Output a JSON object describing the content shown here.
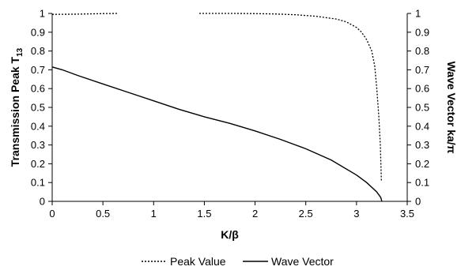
{
  "chart_data": {
    "type": "line",
    "xlabel": "K/β",
    "ylabel_left": "Transmission Peak T₁₃",
    "ylabel_right": "Wave Vector ka/π",
    "xlim": [
      0,
      3.5
    ],
    "ylim_left": [
      0,
      1
    ],
    "ylim_right": [
      0,
      1
    ],
    "x_ticks": [
      "0",
      "0.5",
      "1",
      "1.5",
      "2",
      "2.5",
      "3",
      "3.5"
    ],
    "y_ticks_left": [
      "0",
      "0.1",
      "0.2",
      "0.3",
      "0.4",
      "0.5",
      "0.6",
      "0.7",
      "0.8",
      "0.9",
      "1"
    ],
    "y_ticks_right": [
      "0",
      "0.1",
      "0.2",
      "0.3",
      "0.4",
      "0.5",
      "0.6",
      "0.7",
      "0.8",
      "0.9",
      "1"
    ],
    "grid": false,
    "legend_position": "bottom",
    "series": [
      {
        "name": "Peak Value",
        "style": "dotted",
        "axis": "left",
        "segments": [
          [
            [
              0,
              0.995
            ],
            [
              0.2,
              0.996
            ],
            [
              0.4,
              0.998
            ],
            [
              0.5,
              0.999
            ],
            [
              0.65,
              1.0
            ]
          ],
          [
            [
              1.45,
              1.0
            ],
            [
              1.6,
              1.0
            ],
            [
              1.8,
              1.0
            ],
            [
              2.0,
              0.999
            ],
            [
              2.2,
              0.997
            ],
            [
              2.4,
              0.993
            ],
            [
              2.6,
              0.985
            ],
            [
              2.8,
              0.97
            ],
            [
              2.9,
              0.955
            ],
            [
              3.0,
              0.925
            ],
            [
              3.05,
              0.9
            ],
            [
              3.1,
              0.86
            ],
            [
              3.15,
              0.8
            ],
            [
              3.18,
              0.72
            ],
            [
              3.2,
              0.6
            ],
            [
              3.22,
              0.45
            ],
            [
              3.235,
              0.3
            ],
            [
              3.245,
              0.11
            ]
          ]
        ]
      },
      {
        "name": "Wave Vector",
        "style": "solid",
        "axis": "right",
        "segments": [
          [
            [
              0,
              0.715
            ],
            [
              0.1,
              0.7
            ],
            [
              0.25,
              0.67
            ],
            [
              0.5,
              0.625
            ],
            [
              0.75,
              0.58
            ],
            [
              1.0,
              0.535
            ],
            [
              1.25,
              0.49
            ],
            [
              1.5,
              0.45
            ],
            [
              1.75,
              0.415
            ],
            [
              2.0,
              0.375
            ],
            [
              2.25,
              0.33
            ],
            [
              2.5,
              0.28
            ],
            [
              2.75,
              0.22
            ],
            [
              3.0,
              0.14
            ],
            [
              3.1,
              0.1
            ],
            [
              3.2,
              0.05
            ],
            [
              3.24,
              0.02
            ],
            [
              3.25,
              0.0
            ]
          ]
        ]
      }
    ]
  },
  "colors": {
    "line": "#000000",
    "axis": "#000000",
    "background": "#ffffff"
  }
}
